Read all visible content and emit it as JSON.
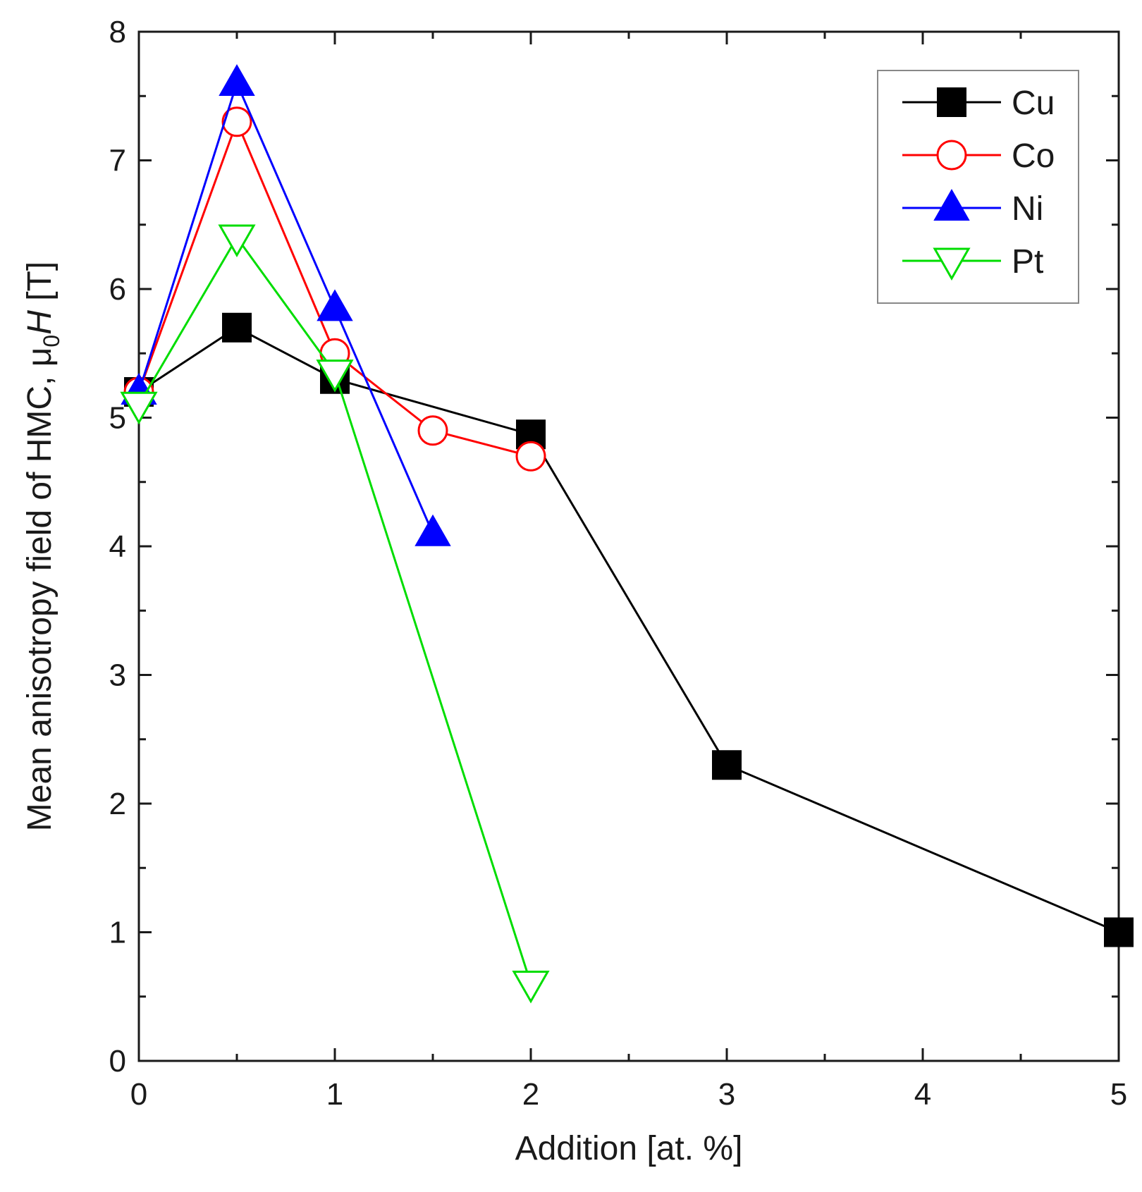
{
  "chart_data": {
    "type": "line",
    "title": "",
    "xlabel": "Addition [at. %]",
    "ylabel": {
      "main": "Mean anisotropy field of HMC, μ",
      "subscript": "0",
      "italic": "H",
      "unit": " [T]"
    },
    "xlim": [
      0,
      5
    ],
    "ylim": [
      0,
      8
    ],
    "x_ticks": [
      0,
      1,
      2,
      3,
      4,
      5
    ],
    "x_tick_labels": [
      "0",
      "1",
      "2",
      "3",
      "4",
      "5"
    ],
    "y_ticks": [
      0,
      1,
      2,
      3,
      4,
      5,
      6,
      7,
      8
    ],
    "y_tick_labels": [
      "0",
      "1",
      "2",
      "3",
      "4",
      "5",
      "6",
      "7",
      "8"
    ],
    "grid": false,
    "legend_position": "top-right",
    "series": [
      {
        "name": "Cu",
        "color": "#000000",
        "marker": "square-filled",
        "x": [
          0,
          0.5,
          1,
          2,
          3,
          5
        ],
        "y": [
          5.2,
          5.7,
          5.3,
          4.87,
          2.3,
          1.0
        ]
      },
      {
        "name": "Co",
        "color": "#ff0000",
        "marker": "circle-open",
        "x": [
          0,
          0.5,
          1,
          1.5,
          2
        ],
        "y": [
          5.2,
          7.3,
          5.5,
          4.9,
          4.7
        ]
      },
      {
        "name": "Ni",
        "color": "#0000ff",
        "marker": "triangle-up-filled",
        "x": [
          0,
          0.5,
          1,
          1.5
        ],
        "y": [
          5.2,
          7.6,
          5.85,
          4.1
        ]
      },
      {
        "name": "Pt",
        "color": "#00dd00",
        "marker": "triangle-down-open",
        "x": [
          0,
          0.5,
          1,
          2
        ],
        "y": [
          5.1,
          6.4,
          5.35,
          0.6
        ]
      }
    ]
  }
}
